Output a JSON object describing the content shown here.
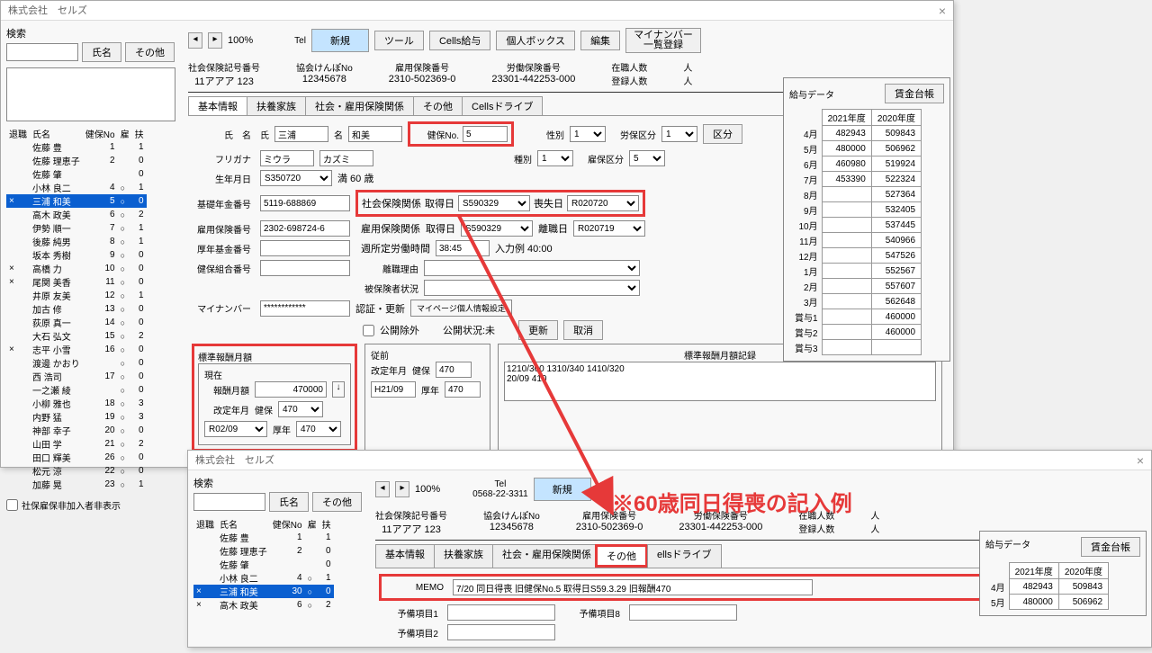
{
  "company": "株式会社　セルズ",
  "search": {
    "label": "検索",
    "btn_name": "氏名",
    "btn_other": "その他"
  },
  "toolbar": {
    "zoom": "100%",
    "tel_label": "Tel",
    "tel_value": "0568-22-3311",
    "new": "新規",
    "tool": "ツール",
    "cells_pay": "Cells給与",
    "personal_box": "個人ボックス",
    "edit": "編集",
    "mynumber_btn": "マイナンバー\n一覧登録"
  },
  "header": {
    "c1_lbl": "社会保険記号番号",
    "c1_val": "11アアア 123",
    "c2_lbl": "協会けんぽNo",
    "c2_val": "12345678",
    "c3_lbl": "雇用保険番号",
    "c3_val": "2310-502369-0",
    "c4_lbl": "労働保険番号",
    "c4_val": "23301-442253-000",
    "c5_lbl": "在職人数",
    "c6_lbl": "登録人数",
    "unit_person": "人"
  },
  "tabs": {
    "t1": "基本情報",
    "t2": "扶養家族",
    "t3": "社会・雇用保険関係",
    "t4": "その他",
    "t5": "Cellsドライブ"
  },
  "emp_headers": {
    "retired": "退職",
    "name": "氏名",
    "kenpo": "健保No",
    "emp": "雇",
    "dep": "扶"
  },
  "employees": [
    {
      "r": "",
      "n": "佐藤 豊",
      "k": "1",
      "e": "",
      "d": "1"
    },
    {
      "r": "",
      "n": "佐藤 理恵子",
      "k": "2",
      "e": "",
      "d": "0"
    },
    {
      "r": "",
      "n": "佐藤 肇",
      "k": "",
      "e": "",
      "d": "0"
    },
    {
      "r": "",
      "n": "小林 良二",
      "k": "4",
      "e": "○",
      "d": "1"
    },
    {
      "r": "×",
      "n": "三浦 和美",
      "k": "5",
      "e": "○",
      "d": "0",
      "sel": true
    },
    {
      "r": "",
      "n": "高木 政美",
      "k": "6",
      "e": "○",
      "d": "2"
    },
    {
      "r": "",
      "n": "伊勢 順一",
      "k": "7",
      "e": "○",
      "d": "1"
    },
    {
      "r": "",
      "n": "後藤 純男",
      "k": "8",
      "e": "○",
      "d": "1"
    },
    {
      "r": "",
      "n": "坂本 秀樹",
      "k": "9",
      "e": "○",
      "d": "0"
    },
    {
      "r": "×",
      "n": "高橋 力",
      "k": "10",
      "e": "○",
      "d": "0"
    },
    {
      "r": "×",
      "n": "尾関 美香",
      "k": "11",
      "e": "○",
      "d": "0"
    },
    {
      "r": "",
      "n": "井原 友美",
      "k": "12",
      "e": "○",
      "d": "1"
    },
    {
      "r": "",
      "n": "加古 修",
      "k": "13",
      "e": "○",
      "d": "0"
    },
    {
      "r": "",
      "n": "荻原 真一",
      "k": "14",
      "e": "○",
      "d": "0"
    },
    {
      "r": "",
      "n": "大石 弘文",
      "k": "15",
      "e": "○",
      "d": "2"
    },
    {
      "r": "×",
      "n": "志平 小雪",
      "k": "16",
      "e": "○",
      "d": "0"
    },
    {
      "r": "",
      "n": "渡邊 かおり",
      "k": "",
      "e": "○",
      "d": "0"
    },
    {
      "r": "",
      "n": "西 浩司",
      "k": "17",
      "e": "○",
      "d": "0"
    },
    {
      "r": "",
      "n": "一之瀬 綾",
      "k": "",
      "e": "○",
      "d": "0"
    },
    {
      "r": "",
      "n": "小柳 雅也",
      "k": "18",
      "e": "○",
      "d": "3"
    },
    {
      "r": "",
      "n": "内野 猛",
      "k": "19",
      "e": "○",
      "d": "3"
    },
    {
      "r": "",
      "n": "神部 幸子",
      "k": "20",
      "e": "○",
      "d": "0"
    },
    {
      "r": "",
      "n": "山田 学",
      "k": "21",
      "e": "○",
      "d": "2"
    },
    {
      "r": "",
      "n": "田口 輝美",
      "k": "26",
      "e": "○",
      "d": "0"
    },
    {
      "r": "",
      "n": "松元 涼",
      "k": "22",
      "e": "○",
      "d": "0"
    },
    {
      "r": "",
      "n": "加藤 晃",
      "k": "23",
      "e": "○",
      "d": "1"
    }
  ],
  "employees2": [
    {
      "r": "",
      "n": "佐藤 豊",
      "k": "1",
      "e": "",
      "d": "1"
    },
    {
      "r": "",
      "n": "佐藤 理恵子",
      "k": "2",
      "e": "",
      "d": "0"
    },
    {
      "r": "",
      "n": "佐藤 肇",
      "k": "",
      "e": "",
      "d": "0"
    },
    {
      "r": "",
      "n": "小林 良二",
      "k": "4",
      "e": "○",
      "d": "1"
    },
    {
      "r": "×",
      "n": "三浦 和美",
      "k": "30",
      "e": "○",
      "d": "0",
      "sel": true
    },
    {
      "r": "×",
      "n": "高木 政美",
      "k": "6",
      "e": "○",
      "d": "2"
    }
  ],
  "hide_nonmember": "社保雇保非加入者非表示",
  "form": {
    "name_lbl": "氏　名",
    "sei_title": "氏",
    "mei_title": "名",
    "sei": "三浦",
    "mei": "和美",
    "furi_lbl": "フリガナ",
    "furi_sei": "ミウラ",
    "furi_mei": "カズミ",
    "kenpo_lbl": "健保No.",
    "kenpo_no": "5",
    "sex_lbl": "性別",
    "type_lbl": "種別",
    "labor_lbl": "労保区分",
    "emp_lbl": "雇保区分",
    "kubun_btn": "区分",
    "birth_lbl": "生年月日",
    "birth": "S350720",
    "birth_age": "満 60 歳",
    "social_lbl": "社会保険関係",
    "acq_lbl": "取得日",
    "acq": "S590329",
    "loss_lbl": "喪失日",
    "loss": "R020720",
    "kiso_lbl": "基礎年金番号",
    "kiso": "5119-688869",
    "emp_ins_lbl": "雇用保険関係",
    "emp_acq": "S590329",
    "leave_lbl": "離職日",
    "leave": "R020719",
    "emp_ins_no_lbl": "雇用保険番号",
    "emp_ins_no": "2302-698724-6",
    "weekhours_lbl": "週所定労働時間",
    "weekhours": "38:45",
    "weekhours_ex": "入力例 40:00",
    "kikin_lbl": "厚年基金番号",
    "leave_reason_lbl": "離職理由",
    "kumiai_lbl": "健保組合番号",
    "insured_lbl": "被保険者状況",
    "mynumber_lbl": "マイナンバー",
    "mynumber": "************",
    "verify_lbl": "認証・更新",
    "publish_except": "公開除外",
    "publish_status": "公開状況:未",
    "update_btn": "更新",
    "cancel_btn": "取消",
    "mypage_lbl": "マイページ個人情報設定",
    "standard_title": "標準報酬月額",
    "current": "現在",
    "monthly_lbl": "報酬月額",
    "monthly": "470000",
    "change_ym_lbl": "改定年月",
    "change_ym": "R02/09",
    "kenpo_grade_lbl": "健保",
    "kounen_lbl": "厚年",
    "grade": "470",
    "prev_title": "従前",
    "prev_ym": "H21/09",
    "prev_kenpo": "470",
    "prev_kounen": "470",
    "record_title": "標準報酬月額記録",
    "record_text": "1210/300 1310/340 1410/320\n20/09 410"
  },
  "salary": {
    "title": "給与データ",
    "ledger_btn": "賃金台帳",
    "y1": "2021年度",
    "y2": "2020年度",
    "months": [
      "4月",
      "5月",
      "6月",
      "7月",
      "8月",
      "9月",
      "10月",
      "11月",
      "12月",
      "1月",
      "2月",
      "3月",
      "賞与1",
      "賞与2",
      "賞与3"
    ],
    "col1": [
      "482943",
      "480000",
      "460980",
      "453390",
      "",
      "",
      "",
      "",
      "",
      "",
      "",
      "",
      "",
      "",
      ""
    ],
    "col2": [
      "509843",
      "506962",
      "519924",
      "522324",
      "527364",
      "532405",
      "537445",
      "540966",
      "547526",
      "552567",
      "557607",
      "562648",
      "460000",
      "460000",
      ""
    ]
  },
  "memo": {
    "memo_lbl": "MEMO",
    "memo_val": "7/20 同日得喪 旧健保No.5 取得日S59.3.29 旧報酬470",
    "yobi1": "予備項目1",
    "yobi2": "予備項目2",
    "yobi8": "予備項目8"
  },
  "callout": "※60歳同日得喪の記入例",
  "salary2_months": [
    "4月",
    "5月"
  ],
  "salary2_col1": [
    "482943",
    "480000"
  ],
  "salary2_col2": [
    "509843",
    "506962"
  ]
}
